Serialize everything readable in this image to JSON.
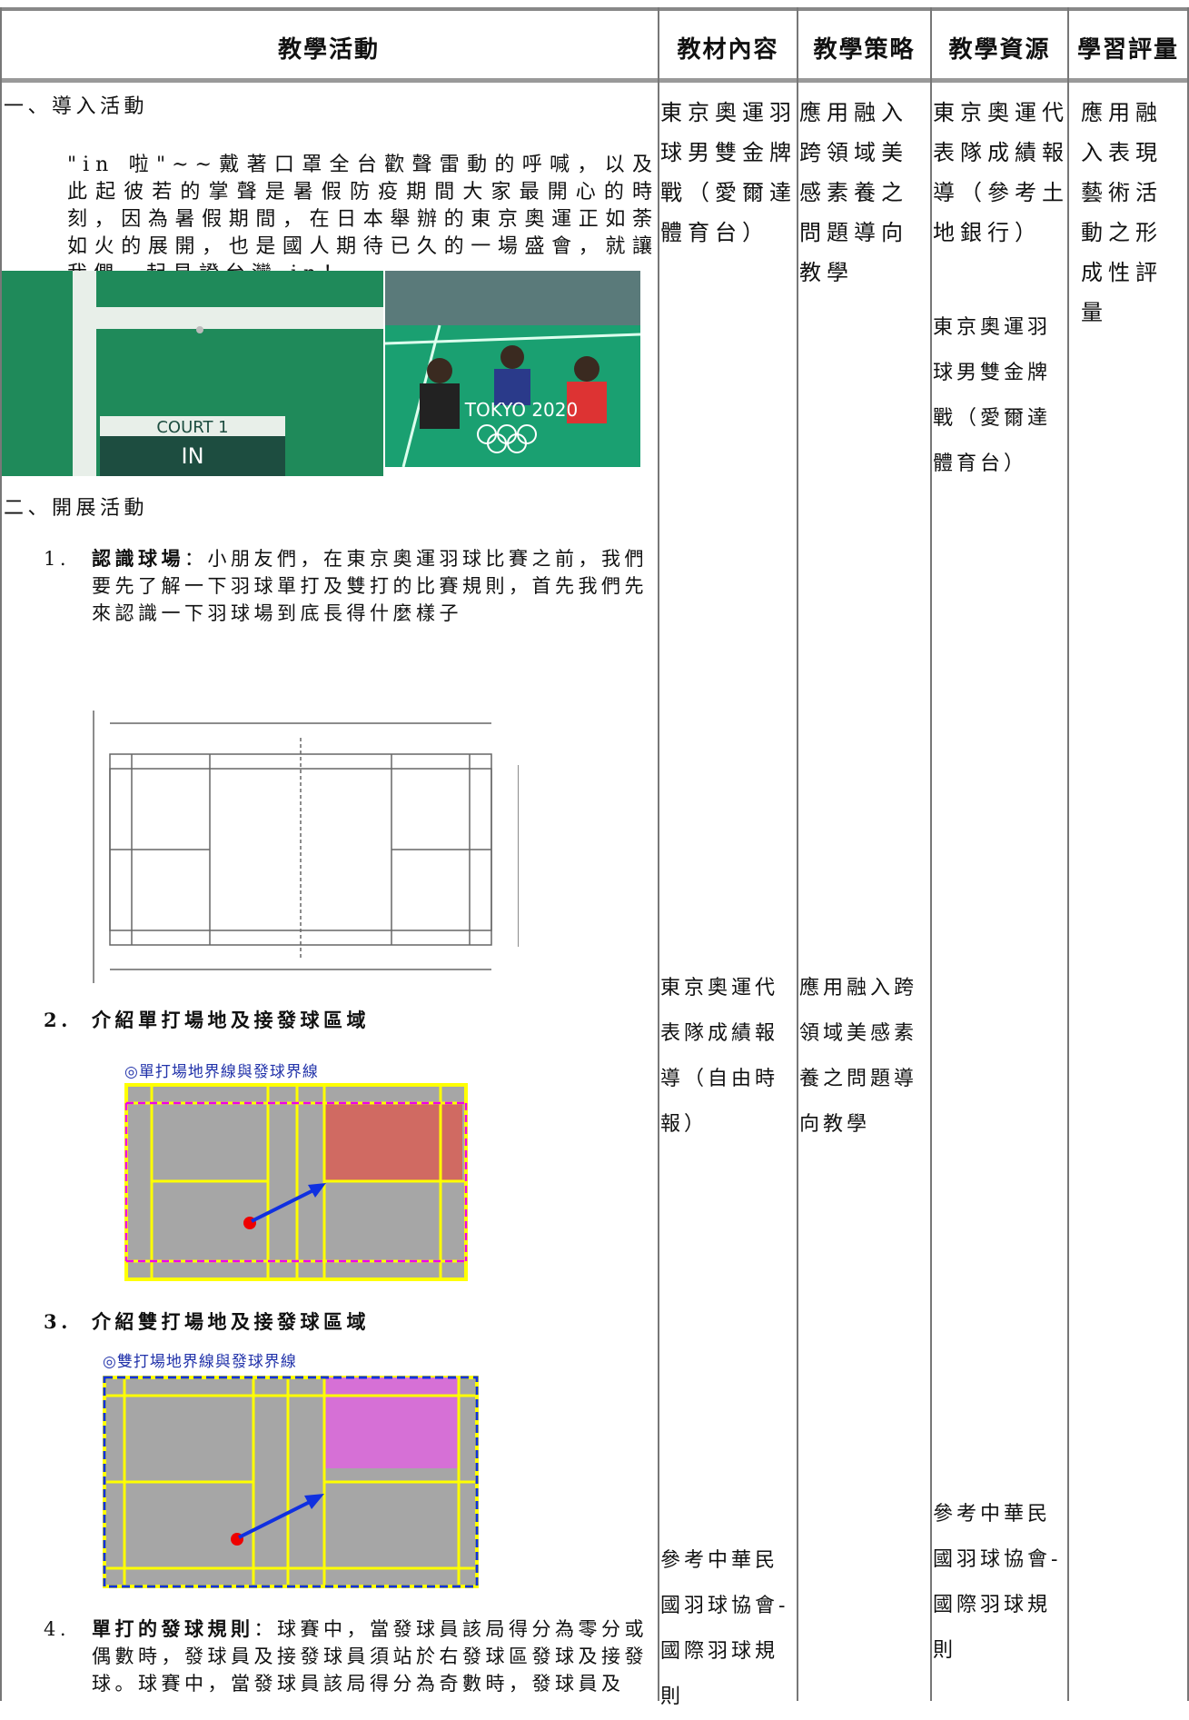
{
  "header": {
    "columns": [
      "教學活動",
      "教材內容",
      "教學策略",
      "教學資源",
      "學習評量"
    ]
  },
  "activities": {
    "intro": {
      "title": "一、導入活動",
      "paragraph": "\"in 啦\"~~戴著口罩全台歡聲雷動的呼喊，以及此起彼若的掌聲是暑假防疫期間大家最開心的時刻，因為暑假期間，在日本舉辦的東京奧運正如荼如火的展開，也是國人期待已久的一場盛會，就讓我們一起見證台灣 in！",
      "images": [
        {
          "labels": [
            "COURT 1",
            "IN"
          ]
        },
        {
          "labels": [
            "TOKYO 2020"
          ]
        }
      ]
    },
    "development": {
      "title": "二、開展活動",
      "items": [
        {
          "number": "1.",
          "heading": "認識球場",
          "text": "：小朋友們，在東京奧運羽球比賽之前，我們要先了解一下羽球單打及雙打的比賽規則，首先我們先來認識一下羽球場到底長得什麼樣子"
        },
        {
          "number": "2.",
          "heading": "介紹單打場地及接發球區域",
          "caption": "◎單打場地界線與發球界線"
        },
        {
          "number": "3.",
          "heading": "介紹雙打場地及接發球區域",
          "caption": "◎雙打場地界線與發球界線"
        },
        {
          "number": "4.",
          "heading": "單打的發球規則",
          "text": "：球賽中，當發球員該局得分為零分或偶數時，發球員及接發球員須站於右發球區發球及接發球。球賽中，當發球員該局得分為奇數時，發球員及"
        }
      ]
    }
  },
  "materials": [
    "東京奧運羽球男雙金牌戰（愛爾達體育台）",
    "東京奧運代表隊成績報導（自由時報）",
    "參考中華民國羽球協會-國際羽球規則"
  ],
  "strategies": [
    "應用融入跨領域美感素養之問題導向教學",
    "應用融入跨領域美感素養之問題導向教學"
  ],
  "resources": [
    "東京奧運代表隊成績報導（參考土地銀行）",
    "東京奧運羽球男雙金牌戰（愛爾達體育台）",
    "參考中華民國羽球協會-國際羽球規則"
  ],
  "assessment": [
    "應用融入表現藝術活動之形成性評量"
  ]
}
